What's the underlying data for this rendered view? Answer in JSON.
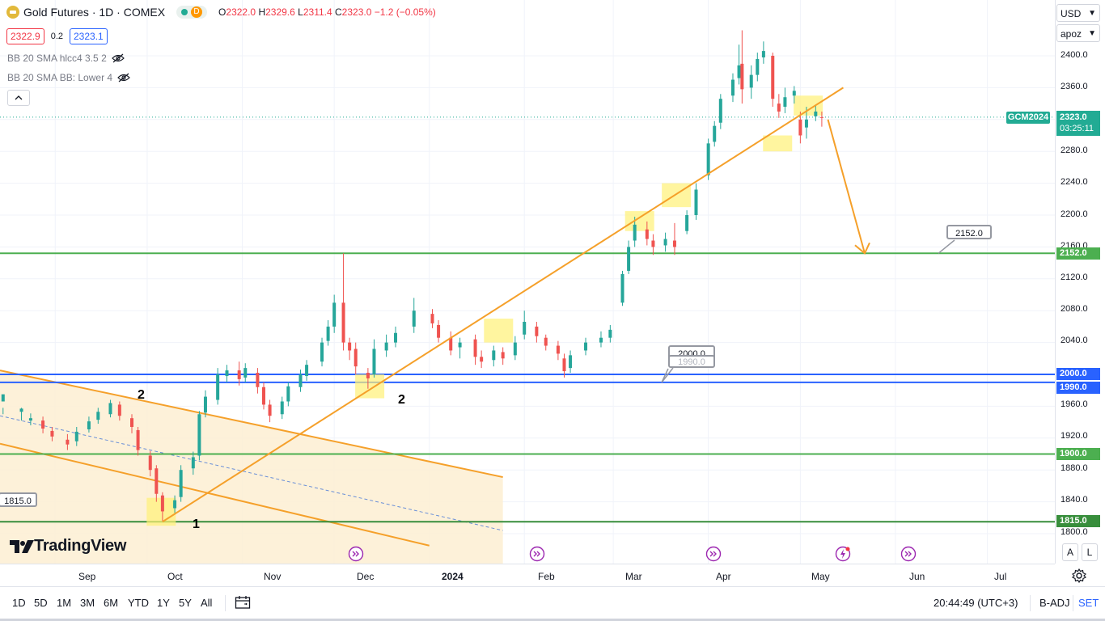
{
  "header": {
    "symbol_title": "Gold Futures · 1D · COMEX",
    "badge_letter": "D",
    "ohlc": {
      "o_label": "O",
      "o": "2322.0",
      "h_label": "H",
      "h": "2329.6",
      "l_label": "L",
      "l": "2311.4",
      "c_label": "C",
      "c": "2323.0",
      "change": "−1.2 (−0.05%)"
    },
    "bid": "2322.9",
    "spread": "0.2",
    "ask": "2323.1",
    "indicators": [
      {
        "label": "BB 20 SMA hlcc4 3.5 2"
      },
      {
        "label": "BB 20 SMA BB: Lower 4"
      }
    ]
  },
  "logo_text": "TradingView",
  "price_axis": {
    "currency": "USD",
    "scale_mode": "apoz",
    "ticks": [
      "2400.0",
      "2360.0",
      "2280.0",
      "2240.0",
      "2200.0",
      "2160.0",
      "2120.0",
      "2080.0",
      "2040.0",
      "1960.0",
      "1920.0",
      "1880.0",
      "1840.0",
      "1800.0"
    ],
    "current_price": "2323.0",
    "countdown": "03:25:11",
    "contract_tag": "GCM2024",
    "level_badges": [
      {
        "label": "2152.0",
        "color": "#4caf50"
      },
      {
        "label": "2000.0",
        "color": "#2962ff"
      },
      {
        "label": "1990.0",
        "color": "#2962ff"
      },
      {
        "label": "1900.0",
        "color": "#4caf50"
      },
      {
        "label": "1815.0",
        "color": "#388e3c"
      }
    ],
    "btn_auto": "A",
    "btn_log": "L"
  },
  "callouts": {
    "c2152": "2152.0",
    "c2000": "2000.0",
    "c2000_ghost": "1990.0",
    "c1815": "1815.0"
  },
  "wave_labels": {
    "w1": "1",
    "w2a": "2",
    "w2b": "2"
  },
  "time_axis": [
    "Sep",
    "Oct",
    "Nov",
    "Dec",
    "2024",
    "Feb",
    "Mar",
    "Apr",
    "May",
    "Jun",
    "Jul"
  ],
  "bottom_bar": {
    "ranges": [
      "1D",
      "5D",
      "1M",
      "3M",
      "6M",
      "YTD",
      "1Y",
      "5Y",
      "All"
    ],
    "clock": "20:44:49 (UTC+3)",
    "adj": "B-ADJ",
    "session": "SET"
  },
  "colors": {
    "up": "#26a69a",
    "down": "#ef5350",
    "trend": "#f5a02a",
    "green_level": "#4caf50",
    "blue_level": "#2962ff",
    "highlight": "#fff176"
  },
  "chart_data": {
    "type": "candlestick",
    "title": "Gold Futures · 1D · COMEX",
    "ylim": [
      1790,
      2420
    ],
    "x_range": [
      "2023-08-14",
      "2024-07-23"
    ],
    "horizontal_levels": [
      2152.0,
      2000.0,
      1990.0,
      1900.0,
      1815.0
    ],
    "last_price": 2323.0,
    "trendline": {
      "from": [
        "2023-10-06",
        1815
      ],
      "to": [
        "2024-05-15",
        2360
      ]
    },
    "projection_arrow": {
      "from": [
        "2024-05-10",
        2320
      ],
      "to": [
        "2024-05-22",
        2152
      ]
    },
    "descending_channel_top": {
      "from": [
        "2023-08-14",
        2005
      ],
      "to": [
        "2024-01-25",
        1871
      ]
    },
    "descending_channel_bottom": {
      "from": [
        "2023-08-14",
        1913
      ],
      "to": [
        "2024-01-01",
        1785
      ]
    },
    "wave_points": [
      {
        "label": "1",
        "date": "2023-10-06",
        "price": 1815
      },
      {
        "label": "2",
        "date": "2023-09-19",
        "price": 1965
      },
      {
        "label": "2",
        "date": "2023-12-13",
        "price": 1975
      }
    ],
    "candles": [
      [
        "2023-08-15",
        1966,
        1975,
        1958,
        1950,
        1
      ],
      [
        "2023-08-21",
        1953,
        1957,
        1958,
        1942,
        1
      ],
      [
        "2023-08-24",
        1942,
        1945,
        1951,
        1936,
        1
      ],
      [
        "2023-08-28",
        1942,
        1932,
        1947,
        1926,
        0
      ],
      [
        "2023-08-31",
        1929,
        1922,
        1934,
        1916,
        0
      ],
      [
        "2023-09-05",
        1918,
        1912,
        1925,
        1905,
        0
      ],
      [
        "2023-09-08",
        1916,
        1928,
        1934,
        1910,
        1
      ],
      [
        "2023-09-12",
        1931,
        1941,
        1947,
        1927,
        1
      ],
      [
        "2023-09-15",
        1943,
        1953,
        1958,
        1938,
        1
      ],
      [
        "2023-09-19",
        1950,
        1964,
        1968,
        1946,
        1
      ],
      [
        "2023-09-22",
        1962,
        1948,
        1966,
        1942,
        0
      ],
      [
        "2023-09-26",
        1945,
        1934,
        1950,
        1926,
        0
      ],
      [
        "2023-09-28",
        1930,
        1905,
        1934,
        1898,
        0
      ],
      [
        "2023-10-02",
        1898,
        1880,
        1904,
        1872,
        0
      ],
      [
        "2023-10-04",
        1882,
        1850,
        1886,
        1840,
        0
      ],
      [
        "2023-10-06",
        1848,
        1828,
        1852,
        1816,
        0
      ],
      [
        "2023-10-10",
        1832,
        1842,
        1848,
        1826,
        1
      ],
      [
        "2023-10-12",
        1846,
        1880,
        1886,
        1840,
        1
      ],
      [
        "2023-10-16",
        1882,
        1896,
        1903,
        1874,
        1
      ],
      [
        "2023-10-18",
        1898,
        1950,
        1954,
        1892,
        1
      ],
      [
        "2023-10-20",
        1952,
        1972,
        1980,
        1946,
        1
      ],
      [
        "2023-10-24",
        1968,
        2000,
        2008,
        1962,
        1
      ],
      [
        "2023-10-27",
        1998,
        2005,
        2012,
        1990,
        1
      ],
      [
        "2023-10-31",
        2005,
        1994,
        2016,
        1986,
        0
      ],
      [
        "2023-11-02",
        1996,
        2008,
        2014,
        1990,
        1
      ],
      [
        "2023-11-06",
        2002,
        1984,
        2008,
        1976,
        0
      ],
      [
        "2023-11-08",
        1984,
        1962,
        1990,
        1956,
        0
      ],
      [
        "2023-11-10",
        1962,
        1948,
        1968,
        1940,
        0
      ],
      [
        "2023-11-14",
        1950,
        1966,
        1972,
        1944,
        1
      ],
      [
        "2023-11-16",
        1966,
        1985,
        1990,
        1960,
        1
      ],
      [
        "2023-11-20",
        1984,
        2000,
        2006,
        1978,
        1
      ],
      [
        "2023-11-22",
        1998,
        2012,
        2018,
        1992,
        1
      ],
      [
        "2023-11-27",
        2016,
        2040,
        2046,
        2010,
        1
      ],
      [
        "2023-11-29",
        2042,
        2060,
        2068,
        2036,
        1
      ],
      [
        "2023-12-01",
        2060,
        2090,
        2100,
        2052,
        1
      ],
      [
        "2023-12-04",
        2090,
        2040,
        2152,
        2030,
        0
      ],
      [
        "2023-12-06",
        2040,
        2030,
        2046,
        2018,
        0
      ],
      [
        "2023-12-08",
        2032,
        2010,
        2040,
        2000,
        0
      ],
      [
        "2023-12-12",
        2002,
        1995,
        2008,
        1982,
        0
      ],
      [
        "2023-12-14",
        2000,
        2032,
        2044,
        1996,
        1
      ],
      [
        "2023-12-18",
        2030,
        2040,
        2050,
        2022,
        1
      ],
      [
        "2023-12-21",
        2040,
        2052,
        2060,
        2034,
        1
      ],
      [
        "2023-12-27",
        2060,
        2080,
        2096,
        2052,
        1
      ],
      [
        "2024-01-02",
        2076,
        2064,
        2082,
        2058,
        0
      ],
      [
        "2024-01-04",
        2062,
        2046,
        2068,
        2040,
        0
      ],
      [
        "2024-01-08",
        2046,
        2030,
        2054,
        2024,
        0
      ],
      [
        "2024-01-11",
        2034,
        2040,
        2046,
        2020,
        1
      ],
      [
        "2024-01-16",
        2044,
        2022,
        2050,
        2012,
        0
      ],
      [
        "2024-01-18",
        2022,
        2016,
        2030,
        2008,
        0
      ],
      [
        "2024-01-22",
        2018,
        2030,
        2036,
        2010,
        1
      ],
      [
        "2024-01-25",
        2028,
        2020,
        2034,
        2012,
        0
      ],
      [
        "2024-01-29",
        2024,
        2040,
        2048,
        2018,
        1
      ],
      [
        "2024-02-01",
        2050,
        2066,
        2080,
        2044,
        1
      ],
      [
        "2024-02-05",
        2060,
        2048,
        2066,
        2040,
        0
      ],
      [
        "2024-02-08",
        2046,
        2036,
        2050,
        2030,
        0
      ],
      [
        "2024-02-12",
        2036,
        2026,
        2042,
        2018,
        0
      ],
      [
        "2024-02-14",
        2020,
        2004,
        2026,
        1996,
        0
      ],
      [
        "2024-02-16",
        2008,
        2024,
        2030,
        2002,
        1
      ],
      [
        "2024-02-21",
        2030,
        2040,
        2046,
        2024,
        1
      ],
      [
        "2024-02-26",
        2040,
        2046,
        2054,
        2034,
        1
      ],
      [
        "2024-02-29",
        2046,
        2056,
        2062,
        2040,
        1
      ],
      [
        "2024-03-04",
        2090,
        2126,
        2130,
        2086,
        1
      ],
      [
        "2024-03-06",
        2130,
        2160,
        2168,
        2126,
        1
      ],
      [
        "2024-03-08",
        2168,
        2188,
        2198,
        2160,
        1
      ],
      [
        "2024-03-12",
        2182,
        2170,
        2192,
        2162,
        0
      ],
      [
        "2024-03-14",
        2168,
        2160,
        2176,
        2150,
        0
      ],
      [
        "2024-03-18",
        2162,
        2170,
        2178,
        2154,
        1
      ],
      [
        "2024-03-21",
        2168,
        2160,
        2190,
        2150,
        0
      ],
      [
        "2024-03-25",
        2180,
        2200,
        2206,
        2176,
        1
      ],
      [
        "2024-03-28",
        2200,
        2232,
        2240,
        2194,
        1
      ],
      [
        "2024-04-01",
        2250,
        2290,
        2296,
        2244,
        1
      ],
      [
        "2024-04-03",
        2292,
        2312,
        2318,
        2286,
        1
      ],
      [
        "2024-04-05",
        2316,
        2346,
        2352,
        2308,
        1
      ],
      [
        "2024-04-09",
        2350,
        2370,
        2378,
        2342,
        1
      ],
      [
        "2024-04-11",
        2372,
        2388,
        2414,
        2364,
        1
      ],
      [
        "2024-04-12",
        2390,
        2358,
        2432,
        2340,
        0
      ],
      [
        "2024-04-15",
        2360,
        2376,
        2388,
        2346,
        1
      ],
      [
        "2024-04-17",
        2376,
        2396,
        2404,
        2368,
        1
      ],
      [
        "2024-04-19",
        2398,
        2406,
        2418,
        2390,
        1
      ],
      [
        "2024-04-22",
        2400,
        2346,
        2404,
        2336,
        0
      ],
      [
        "2024-04-24",
        2340,
        2330,
        2352,
        2322,
        0
      ],
      [
        "2024-04-26",
        2336,
        2348,
        2360,
        2328,
        1
      ],
      [
        "2024-04-29",
        2350,
        2356,
        2362,
        2340,
        1
      ],
      [
        "2024-05-01",
        2320,
        2300,
        2330,
        2290,
        0
      ],
      [
        "2024-05-03",
        2310,
        2320,
        2336,
        2296,
        1
      ],
      [
        "2024-05-06",
        2324,
        2330,
        2338,
        2318,
        1
      ],
      [
        "2024-05-08",
        2322,
        2323,
        2330,
        2311,
        0
      ]
    ]
  }
}
